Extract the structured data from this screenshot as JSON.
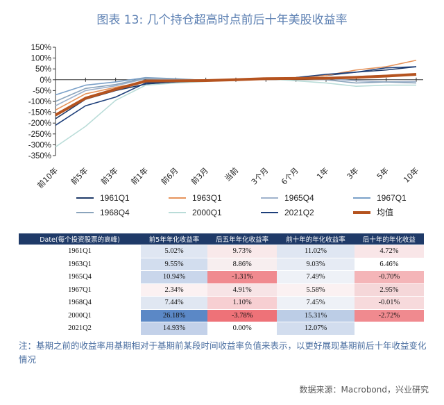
{
  "title": "图表 13: 几个持仓超高时点前后十年美股收益率",
  "chart_data": {
    "type": "line",
    "x": [
      "前10年",
      "前5年",
      "前3年",
      "前1年",
      "前6月",
      "前3月",
      "当前",
      "3个月",
      "6个月",
      "1年",
      "3年",
      "5年",
      "10年"
    ],
    "yticks": [
      "150%",
      "100%",
      "50%",
      "0%",
      "-50%",
      "-100%",
      "-150%",
      "-200%",
      "-250%",
      "-300%",
      "-350%"
    ],
    "ylim": [
      -350,
      150
    ],
    "series": [
      {
        "name": "1961Q1",
        "color": "#1f3a68",
        "values": [
          -180,
          -90,
          -50,
          -20,
          -10,
          -5,
          0,
          5,
          10,
          20,
          35,
          45,
          60
        ]
      },
      {
        "name": "1963Q1",
        "color": "#e6935a",
        "values": [
          -140,
          -65,
          -35,
          -10,
          -5,
          -3,
          0,
          5,
          10,
          20,
          45,
          60,
          90
        ]
      },
      {
        "name": "1965Q4",
        "color": "#9fb2cc",
        "values": [
          -120,
          -50,
          -28,
          5,
          3,
          -2,
          0,
          5,
          8,
          5,
          -5,
          -10,
          -8
        ]
      },
      {
        "name": "1967Q1",
        "color": "#7aa0c8",
        "values": [
          -70,
          -25,
          -10,
          10,
          5,
          -3,
          0,
          5,
          7,
          10,
          15,
          20,
          25
        ]
      },
      {
        "name": "1968Q4",
        "color": "#8aa4bc",
        "values": [
          -100,
          -40,
          -22,
          8,
          4,
          -4,
          0,
          4,
          5,
          0,
          -15,
          -10,
          -15
        ]
      },
      {
        "name": "2000Q1",
        "color": "#b9dcd8",
        "values": [
          -310,
          -215,
          -95,
          -25,
          -15,
          -8,
          0,
          5,
          -5,
          -15,
          -30,
          -25,
          -25
        ]
      },
      {
        "name": "2021Q2",
        "color": "#1d3f7a",
        "values": [
          -210,
          -120,
          -80,
          -15,
          -10,
          -5,
          0,
          5,
          10,
          25,
          35,
          55,
          60
        ]
      },
      {
        "name": "均值",
        "color": "#b5531f",
        "values": [
          -163,
          -85,
          -44,
          -6,
          -5,
          -4,
          0,
          5,
          6,
          7,
          11,
          17,
          25
        ]
      }
    ]
  },
  "table": {
    "headers": [
      "Date(每个投资股票的高峰)",
      "前5年年化收益率",
      "后五年年化收益率",
      "前十年的年化收益率",
      "后十年的年化收益"
    ],
    "rows": [
      [
        "1961Q1",
        "5.02%",
        "9.73%",
        "11.02%",
        "4.72%"
      ],
      [
        "1963Q1",
        "9.55%",
        "8.86%",
        "9.03%",
        "6.46%"
      ],
      [
        "1965Q4",
        "10.94%",
        "-1.31%",
        "7.49%",
        "-0.70%"
      ],
      [
        "1967Q1",
        "2.34%",
        "4.91%",
        "5.58%",
        "2.95%"
      ],
      [
        "1968Q4",
        "7.44%",
        "1.10%",
        "7.45%",
        "-0.01%"
      ],
      [
        "2000Q1",
        "26.18%",
        "-3.78%",
        "15.31%",
        "-2.72%"
      ],
      [
        "2021Q2",
        "14.93%",
        "0.00%",
        "12.07%",
        ""
      ]
    ],
    "cell_colors": [
      [
        "#ffffff",
        "#dfe6f2",
        "#f9e9ea",
        "#dfe6f2",
        "#f9e6e8"
      ],
      [
        "#ffffff",
        "#d2ddee",
        "#f7eeef",
        "#e6ebf4",
        "#ffffff"
      ],
      [
        "#ffffff",
        "#c9d6eb",
        "#f08a8f",
        "#eef1f7",
        "#f4b5b8"
      ],
      [
        "#ffffff",
        "#fbf1f2",
        "#f7e4e6",
        "#fbf1f2",
        "#f5d7d9"
      ],
      [
        "#ffffff",
        "#e0e7f2",
        "#f7cfd2",
        "#eef1f7",
        "#f7dadc"
      ],
      [
        "#ffffff",
        "#5b88c6",
        "#ee7278",
        "#bccde6",
        "#f08a8f"
      ],
      [
        "#ffffff",
        "#c3d1e9",
        "#ffffff",
        "#d2ddee",
        "#ffffff"
      ]
    ],
    "header_color": "#1f3a68"
  },
  "footnote": "注：基期之前的收益率用基期相对于基期前某段时间收益率负值来表示，以更好展现基期前后十年收益变化情况",
  "source": "数据来源：Macrobond，兴业研究"
}
